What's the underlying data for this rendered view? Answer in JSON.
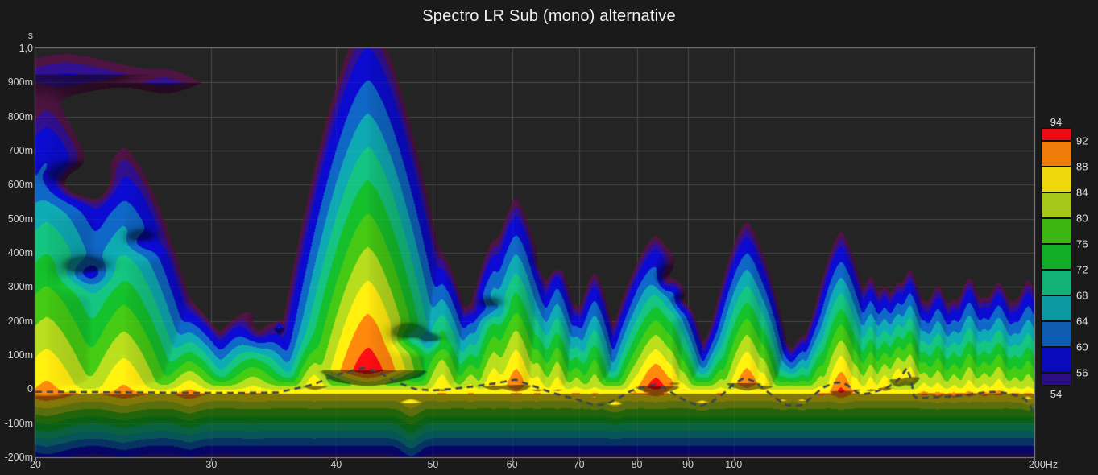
{
  "window": {
    "title": "Spectro LR Sub (mono) alternative"
  },
  "chart_data": {
    "type": "heatmap",
    "subtype": "spectrogram-contour",
    "title": "Spectro LR Sub (mono) alternative",
    "x_axis": {
      "scale": "log",
      "unit": "Hz",
      "min_hz": 20,
      "max_hz": 200,
      "ticks": [
        {
          "hz": 20,
          "label": "20"
        },
        {
          "hz": 30,
          "label": "30"
        },
        {
          "hz": 40,
          "label": "40"
        },
        {
          "hz": 50,
          "label": "50"
        },
        {
          "hz": 60,
          "label": "60"
        },
        {
          "hz": 70,
          "label": "70"
        },
        {
          "hz": 80,
          "label": "80"
        },
        {
          "hz": 90,
          "label": "90"
        },
        {
          "hz": 100,
          "label": "100"
        },
        {
          "hz": 200,
          "label": "200Hz"
        }
      ],
      "grid_hz": [
        30,
        40,
        50,
        60,
        70,
        80,
        90,
        100
      ]
    },
    "y_axis": {
      "unit_label": "s",
      "min_ms": -200,
      "max_ms": 1000,
      "ticks": [
        {
          "ms": 1000,
          "label": "1,0"
        },
        {
          "ms": 900,
          "label": "900m"
        },
        {
          "ms": 800,
          "label": "800m"
        },
        {
          "ms": 700,
          "label": "700m"
        },
        {
          "ms": 600,
          "label": "600m"
        },
        {
          "ms": 500,
          "label": "500m"
        },
        {
          "ms": 400,
          "label": "400m"
        },
        {
          "ms": 300,
          "label": "300m"
        },
        {
          "ms": 200,
          "label": "200m"
        },
        {
          "ms": 100,
          "label": "100m"
        },
        {
          "ms": 0,
          "label": "0"
        },
        {
          "ms": -100,
          "label": "-100m"
        },
        {
          "ms": -200,
          "label": "-200m"
        }
      ],
      "grid_ms": [
        900,
        800,
        700,
        600,
        500,
        400,
        300,
        200,
        100,
        0,
        -100
      ]
    },
    "legend": {
      "top_label": "94",
      "bottom_label": "54",
      "boundary_labels": [
        "92",
        "88",
        "84",
        "80",
        "76",
        "72",
        "68",
        "64",
        "60",
        "56"
      ],
      "bands": [
        {
          "min_db": 92,
          "max_db": 94,
          "color": "#ee0c12"
        },
        {
          "min_db": 88,
          "max_db": 92,
          "color": "#f07c0c"
        },
        {
          "min_db": 84,
          "max_db": 88,
          "color": "#edd90d"
        },
        {
          "min_db": 80,
          "max_db": 84,
          "color": "#a6c81a"
        },
        {
          "min_db": 76,
          "max_db": 80,
          "color": "#3eb611"
        },
        {
          "min_db": 72,
          "max_db": 76,
          "color": "#12ad27"
        },
        {
          "min_db": 68,
          "max_db": 72,
          "color": "#12b174"
        },
        {
          "min_db": 64,
          "max_db": 68,
          "color": "#0d99a2"
        },
        {
          "min_db": 60,
          "max_db": 64,
          "color": "#0d5cb2"
        },
        {
          "min_db": 56,
          "max_db": 60,
          "color": "#0a0abc"
        },
        {
          "min_db": 54,
          "max_db": 56,
          "color": "#2d0e82"
        }
      ],
      "below_floor_rim_color": "#46123c"
    },
    "db_floor_visible": 54,
    "peak_time_trace": {
      "style": "dashed",
      "color": "#3d444c",
      "points_hz_ms": [
        [
          20,
          -8
        ],
        [
          23,
          -9
        ],
        [
          26,
          -10
        ],
        [
          29,
          -11
        ],
        [
          32,
          -11
        ],
        [
          35,
          -10
        ],
        [
          38,
          14
        ],
        [
          40,
          42
        ],
        [
          42.5,
          62
        ],
        [
          44,
          52
        ],
        [
          46,
          20
        ],
        [
          48,
          0
        ],
        [
          50,
          -4
        ],
        [
          52,
          0
        ],
        [
          55,
          8
        ],
        [
          58,
          18
        ],
        [
          60.5,
          28
        ],
        [
          62,
          16
        ],
        [
          64,
          2
        ],
        [
          66,
          -12
        ],
        [
          68,
          -22
        ],
        [
          70,
          -32
        ],
        [
          72.5,
          -47
        ],
        [
          74.5,
          -45
        ],
        [
          76.5,
          -28
        ],
        [
          79,
          -5
        ],
        [
          81.5,
          8
        ],
        [
          83.5,
          13
        ],
        [
          85.5,
          2
        ],
        [
          87.5,
          -18
        ],
        [
          90,
          -38
        ],
        [
          92.5,
          -50
        ],
        [
          95,
          -38
        ],
        [
          97.5,
          -15
        ],
        [
          100,
          15
        ],
        [
          102.5,
          33
        ],
        [
          105,
          22
        ],
        [
          107.5,
          -2
        ],
        [
          110,
          -25
        ],
        [
          112.5,
          -45
        ],
        [
          115,
          -50
        ],
        [
          117.5,
          -45
        ],
        [
          120,
          -20
        ],
        [
          123,
          5
        ],
        [
          126,
          18
        ],
        [
          128.5,
          20
        ],
        [
          130.5,
          8
        ],
        [
          132.5,
          -8
        ],
        [
          134.5,
          -15
        ],
        [
          137,
          -12
        ],
        [
          139.5,
          -5
        ],
        [
          142,
          3
        ],
        [
          144.5,
          15
        ],
        [
          147,
          35
        ],
        [
          149,
          62
        ],
        [
          150.5,
          30
        ],
        [
          151.5,
          -20
        ],
        [
          153,
          -28
        ],
        [
          155,
          -26
        ],
        [
          158,
          -24
        ],
        [
          162,
          -22
        ],
        [
          166,
          -22
        ],
        [
          170,
          -18
        ],
        [
          174,
          -14
        ],
        [
          178,
          -10
        ],
        [
          182,
          -8
        ],
        [
          186,
          -10
        ],
        [
          190,
          -16
        ],
        [
          193,
          -20
        ],
        [
          196,
          -30
        ],
        [
          198,
          -48
        ],
        [
          200,
          -72
        ]
      ]
    },
    "surface_model": {
      "note": "Estimated decomposition of the displayed SPL surface (dB over frequency/time). Each ridge: level falls 40 dB over up_ms going to later time and over down_ms going to earlier time; width_oct is the log-frequency spread for a 40 dB drop.",
      "bed": {
        "peak_db": 88,
        "t_peak_ms": -12,
        "up_ms_per40db": 112,
        "down_ms_per40db": 218
      },
      "modal_ridges": {
        "columns": [
          "f_hz",
          "peak_db",
          "t_peak_ms",
          "up_ms_per40db",
          "down_ms_per40db",
          "width_oct"
        ],
        "rows": [
          [
            20.5,
            90,
            -20,
            930,
            225,
            0.4
          ],
          [
            24.5,
            89.5,
            -15,
            780,
            215,
            0.32
          ],
          [
            28.5,
            90,
            -15,
            280,
            210,
            0.22
          ],
          [
            33,
            86.5,
            -10,
            300,
            200,
            0.26
          ],
          [
            38,
            88,
            10,
            330,
            205,
            0.15
          ],
          [
            43,
            94.8,
            55,
            980,
            125,
            0.3
          ],
          [
            47.5,
            86.5,
            -40,
            200,
            235,
            0.17
          ],
          [
            51,
            88,
            0,
            440,
            185,
            0.15
          ],
          [
            54.5,
            86.5,
            -5,
            300,
            180,
            0.13
          ],
          [
            57.5,
            88.5,
            10,
            470,
            175,
            0.14
          ],
          [
            60.5,
            91.5,
            12,
            560,
            165,
            0.16
          ],
          [
            63.5,
            88,
            0,
            380,
            160,
            0.13
          ],
          [
            66.5,
            87.5,
            0,
            430,
            160,
            0.12
          ],
          [
            69.5,
            86,
            -10,
            300,
            160,
            0.12
          ],
          [
            72.5,
            86.5,
            -25,
            430,
            160,
            0.12
          ],
          [
            76,
            85,
            -45,
            190,
            155,
            0.15
          ],
          [
            79.5,
            87.5,
            -5,
            310,
            150,
            0.13
          ],
          [
            83.5,
            94.5,
            8,
            420,
            140,
            0.19
          ],
          [
            86.5,
            87.5,
            20,
            420,
            140,
            0.11
          ],
          [
            89,
            86,
            0,
            300,
            140,
            0.11
          ],
          [
            93,
            85,
            -40,
            180,
            140,
            0.13
          ],
          [
            97,
            86.5,
            -15,
            270,
            140,
            0.12
          ],
          [
            103,
            91.8,
            18,
            480,
            140,
            0.16
          ],
          [
            107,
            87.5,
            10,
            380,
            140,
            0.11
          ],
          [
            112,
            85,
            -35,
            210,
            140,
            0.12
          ],
          [
            117,
            85.5,
            -35,
            230,
            140,
            0.11
          ],
          [
            122,
            87,
            -15,
            300,
            140,
            0.11
          ],
          [
            128,
            93,
            -5,
            460,
            140,
            0.14
          ],
          [
            132.5,
            87.5,
            0,
            340,
            140,
            0.1
          ],
          [
            137,
            88,
            0,
            370,
            135,
            0.1
          ],
          [
            141.5,
            88.5,
            5,
            330,
            135,
            0.1
          ],
          [
            146,
            88,
            30,
            320,
            135,
            0.1
          ],
          [
            150,
            87.5,
            35,
            360,
            135,
            0.1
          ],
          [
            155,
            88,
            -10,
            300,
            135,
            0.11
          ],
          [
            160,
            88.5,
            -20,
            360,
            135,
            0.11
          ],
          [
            166,
            88,
            -20,
            320,
            135,
            0.11
          ],
          [
            172,
            88.5,
            -15,
            380,
            135,
            0.11
          ],
          [
            178,
            88,
            -15,
            320,
            135,
            0.11
          ],
          [
            184,
            88.5,
            -10,
            360,
            135,
            0.12
          ],
          [
            191,
            87,
            -20,
            320,
            135,
            0.11
          ],
          [
            197,
            87.5,
            -30,
            400,
            135,
            0.12
          ],
          [
            21.5,
            56.2,
            925,
            600,
            600,
            1.3
          ],
          [
            27,
            55,
            900,
            450,
            450,
            0.7
          ],
          [
            35,
            61,
            180,
            100,
            110,
            0.055
          ]
        ]
      },
      "dips": {
        "columns": [
          "f_hz",
          "t_ms",
          "depth_db",
          "width_oct",
          "width_ms"
        ],
        "rows": [
          [
            22,
            600,
            10,
            0.1,
            48
          ],
          [
            22.5,
            340,
            8,
            0.075,
            36
          ],
          [
            25.5,
            430,
            5,
            0.055,
            30
          ],
          [
            33.3,
            170,
            9,
            0.045,
            55
          ],
          [
            47.3,
            150,
            7,
            0.05,
            28
          ],
          [
            49.8,
            135,
            5,
            0.04,
            22
          ],
          [
            57,
            235,
            6,
            0.05,
            30
          ],
          [
            65.5,
            370,
            5,
            0.04,
            25
          ],
          [
            85,
            310,
            4,
            0.03,
            30
          ],
          [
            86.5,
            330,
            6,
            0.045,
            40
          ],
          [
            88.5,
            255,
            5,
            0.04,
            28
          ]
        ]
      }
    },
    "style": {
      "page_bg": "#1a1a1a",
      "plot_bg": "#242424",
      "grid": "#3f3f3f",
      "border": "#8a8a8a",
      "tick_text": "#d0d0d0",
      "title_text": "#f2f2f2"
    }
  }
}
